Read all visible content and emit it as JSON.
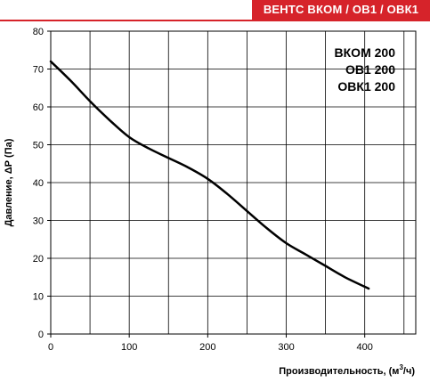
{
  "header": {
    "banner": "ВЕНТС ВКОМ / ОВ1 / ОВК1"
  },
  "chart_data": {
    "type": "line",
    "xlabel": "Производительность, (м",
    "xlabel_sup": "3",
    "xlabel_tail": "/ч)",
    "ylabel": "Давление, ΔР (Па)",
    "xlim": [
      0,
      465
    ],
    "ylim": [
      0,
      80
    ],
    "x_ticks": [
      0,
      100,
      200,
      300,
      400
    ],
    "y_ticks": [
      0,
      10,
      20,
      30,
      40,
      50,
      60,
      70,
      80
    ],
    "x_grid_step": 50,
    "y_grid_step": 10,
    "grid": true,
    "annotations": [
      "ВКОМ 200",
      "ОВ1 200",
      "ОВК1 200"
    ],
    "series": [
      {
        "x": [
          0,
          25,
          50,
          75,
          100,
          125,
          150,
          175,
          200,
          225,
          250,
          275,
          300,
          325,
          350,
          375,
          405
        ],
        "y": [
          72,
          67,
          61.5,
          56.5,
          52,
          49,
          46.5,
          44,
          41,
          37,
          32.5,
          28,
          24,
          21,
          18,
          15,
          12
        ]
      }
    ]
  }
}
